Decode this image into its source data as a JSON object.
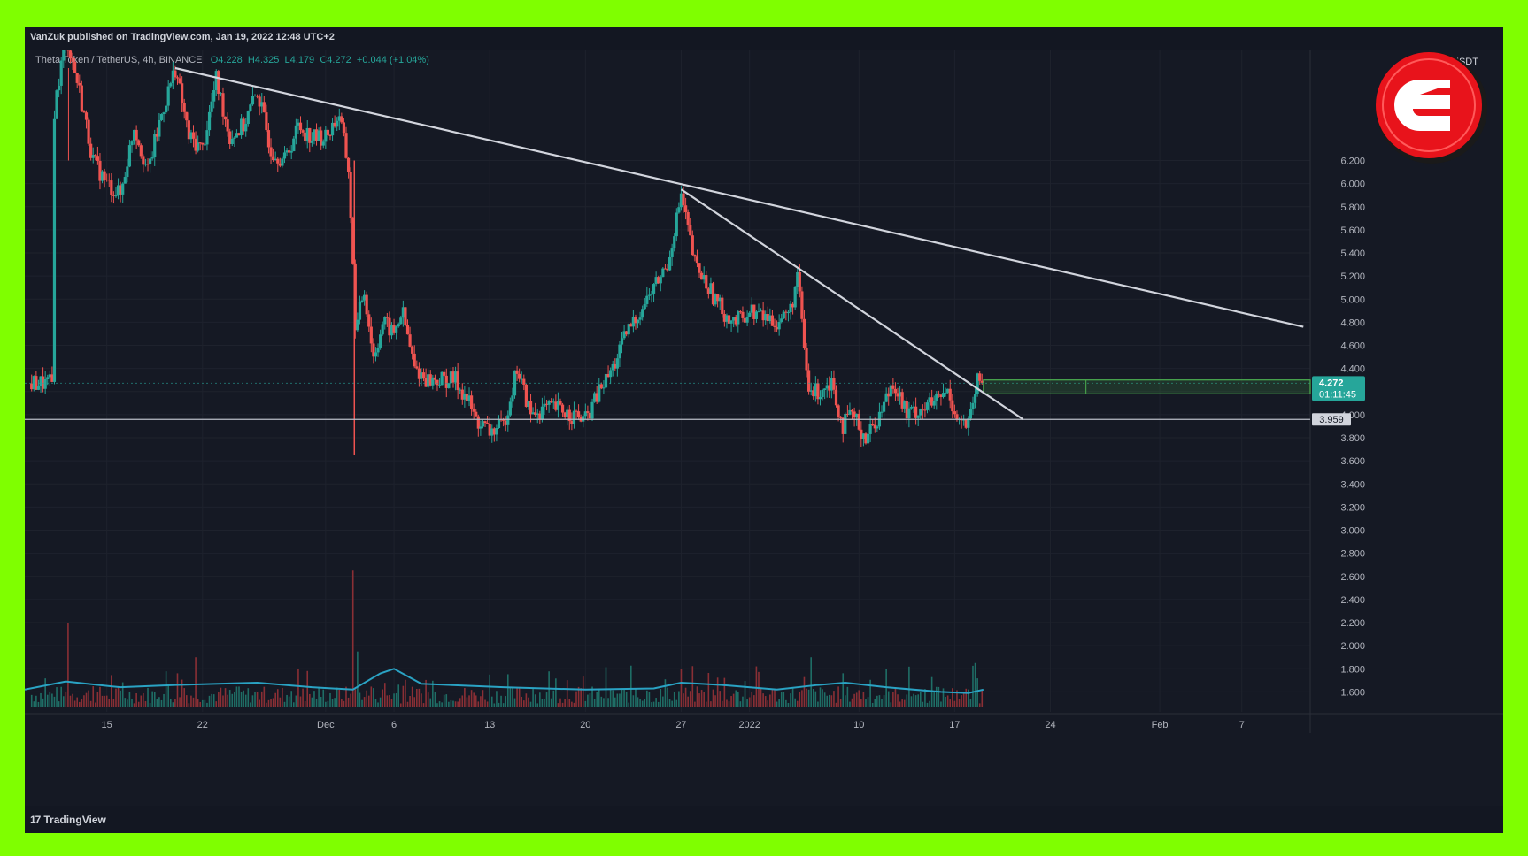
{
  "header": {
    "published": "VanZuk published on TradingView.com, Jan 19, 2022 12:48 UTC+2"
  },
  "legend": {
    "symbol": "Theta Token / TetherUS, 4h, BINANCE",
    "open": "O4.228",
    "high": "H4.325",
    "low": "L4.179",
    "close": "C4.272",
    "change": "+0.044 (+1.04%)"
  },
  "currency": "USDT",
  "footer": {
    "brand": "TradingView"
  },
  "colors": {
    "up": "#26a69a",
    "down": "#ef5350",
    "trendline": "#d1d4dc",
    "volume_ma": "#2aa3c4",
    "highlight": "#4caf50",
    "badge": "#e8131b",
    "frame": "#7fff00"
  },
  "chart_data": {
    "type": "candlestick",
    "timeframe": "4h",
    "ylim": [
      1.45,
      7.0
    ],
    "y_ticks": [
      "6.200",
      "6.000",
      "5.800",
      "5.600",
      "5.400",
      "5.200",
      "5.000",
      "4.800",
      "4.600",
      "4.400",
      "4.200",
      "4.000",
      "3.800",
      "3.600",
      "3.400",
      "3.200",
      "3.000",
      "2.800",
      "2.600",
      "2.400",
      "2.200",
      "2.000",
      "1.800",
      "1.600"
    ],
    "x_ticks": [
      {
        "label": "15",
        "day": 15
      },
      {
        "label": "22",
        "day": 22
      },
      {
        "label": "Dec",
        "day": 31
      },
      {
        "label": "6",
        "day": 36
      },
      {
        "label": "13",
        "day": 43
      },
      {
        "label": "20",
        "day": 50
      },
      {
        "label": "27",
        "day": 57
      },
      {
        "label": "2022",
        "day": 62
      },
      {
        "label": "10",
        "day": 70
      },
      {
        "label": "17",
        "day": 77
      },
      {
        "label": "24",
        "day": 84
      },
      {
        "label": "Feb",
        "day": 92
      },
      {
        "label": "7",
        "day": 98
      }
    ],
    "x_range_days": [
      9,
      103
    ],
    "price_path": [
      [
        11,
        6.5
      ],
      [
        12,
        7.3
      ],
      [
        13,
        6.8
      ],
      [
        14,
        6.2
      ],
      [
        15,
        6.0
      ],
      [
        16,
        5.9
      ],
      [
        17,
        6.5
      ],
      [
        18,
        6.1
      ],
      [
        19,
        6.6
      ],
      [
        20,
        7.0
      ],
      [
        21,
        6.4
      ],
      [
        22,
        6.3
      ],
      [
        23,
        6.9
      ],
      [
        24,
        6.4
      ],
      [
        25,
        6.5
      ],
      [
        26,
        6.8
      ],
      [
        27,
        6.3
      ],
      [
        28,
        6.2
      ],
      [
        29,
        6.5
      ],
      [
        30,
        6.4
      ],
      [
        31,
        6.4
      ],
      [
        32,
        6.6
      ],
      [
        32.7,
        6.1
      ],
      [
        33.2,
        4.7
      ],
      [
        33.8,
        5.1
      ],
      [
        34.5,
        4.5
      ],
      [
        35.2,
        4.8
      ],
      [
        36,
        4.7
      ],
      [
        36.6,
        4.9
      ],
      [
        37.5,
        4.4
      ],
      [
        38.5,
        4.3
      ],
      [
        39.5,
        4.3
      ],
      [
        40.5,
        4.3
      ],
      [
        41.5,
        4.1
      ],
      [
        42,
        3.95
      ],
      [
        43,
        3.85
      ],
      [
        44,
        3.9
      ],
      [
        45,
        4.4
      ],
      [
        46,
        4.0
      ],
      [
        47,
        4.05
      ],
      [
        48,
        4.05
      ],
      [
        49,
        4.0
      ],
      [
        50,
        3.95
      ],
      [
        51,
        4.2
      ],
      [
        52,
        4.4
      ],
      [
        53,
        4.7
      ],
      [
        54,
        4.9
      ],
      [
        55,
        5.1
      ],
      [
        56,
        5.3
      ],
      [
        57,
        5.9
      ],
      [
        57.5,
        5.6
      ],
      [
        58,
        5.3
      ],
      [
        59,
        5.1
      ],
      [
        60,
        4.9
      ],
      [
        61,
        4.8
      ],
      [
        62,
        4.9
      ],
      [
        63,
        4.85
      ],
      [
        64,
        4.8
      ],
      [
        65,
        4.9
      ],
      [
        65.5,
        5.2
      ],
      [
        66.3,
        4.2
      ],
      [
        67,
        4.2
      ],
      [
        68,
        4.3
      ],
      [
        68.8,
        3.9
      ],
      [
        69.5,
        4.0
      ],
      [
        70.5,
        3.8
      ],
      [
        71.5,
        4.0
      ],
      [
        72.5,
        4.3
      ],
      [
        73.5,
        4.0
      ],
      [
        74.5,
        4.05
      ],
      [
        75.5,
        4.1
      ],
      [
        76.5,
        4.2
      ],
      [
        77.3,
        3.95
      ],
      [
        78,
        3.9
      ],
      [
        78.7,
        4.3
      ],
      [
        79.1,
        4.27
      ]
    ],
    "volume": {
      "baseline": 1.5,
      "typical_max": 1.65,
      "spikes": [
        [
          12.2,
          2.2
        ],
        [
          21.5,
          1.9
        ],
        [
          33.0,
          2.65
        ],
        [
          33.3,
          1.95
        ],
        [
          57.0,
          1.8
        ],
        [
          66.5,
          1.9
        ],
        [
          78.5,
          1.85
        ]
      ],
      "ma_path": [
        [
          9,
          1.62
        ],
        [
          12,
          1.69
        ],
        [
          16,
          1.64
        ],
        [
          20,
          1.66
        ],
        [
          26,
          1.68
        ],
        [
          30,
          1.64
        ],
        [
          33,
          1.62
        ],
        [
          35,
          1.76
        ],
        [
          36,
          1.8
        ],
        [
          38,
          1.67
        ],
        [
          44,
          1.64
        ],
        [
          50,
          1.62
        ],
        [
          55,
          1.63
        ],
        [
          57,
          1.68
        ],
        [
          60,
          1.66
        ],
        [
          64,
          1.62
        ],
        [
          67,
          1.66
        ],
        [
          69,
          1.68
        ],
        [
          72,
          1.64
        ],
        [
          76,
          1.6
        ],
        [
          78,
          1.59
        ],
        [
          79.1,
          1.62
        ]
      ]
    },
    "support_level": {
      "value": 3.959,
      "label": "3.959"
    },
    "last_price": {
      "value": 4.272,
      "label": "4.272",
      "countdown": "01:11:45"
    },
    "highlight_zone": {
      "x_from_day": 79.1,
      "x_to_day": 103,
      "y_top": 4.3,
      "y_bottom": 4.18
    },
    "trendlines": [
      {
        "name": "long-term",
        "points": [
          [
            20,
            7.0
          ],
          [
            102.5,
            4.76
          ]
        ]
      },
      {
        "name": "short-term",
        "points": [
          [
            57,
            5.95
          ],
          [
            82,
            3.96
          ]
        ]
      }
    ]
  }
}
